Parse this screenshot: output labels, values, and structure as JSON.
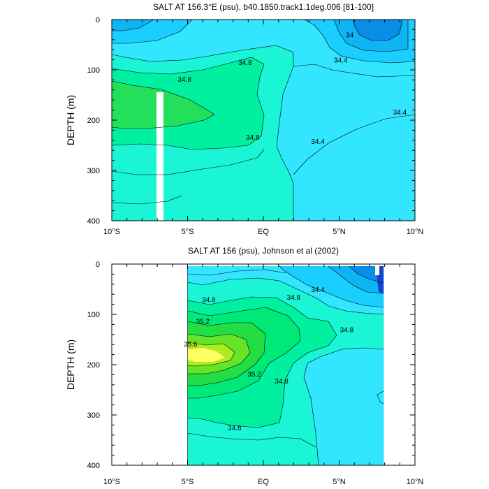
{
  "chart_data": [
    {
      "type": "contour",
      "title": "SALT AT 156.3°E (psu), b40.1850.track1.1deg.006 [81-100]",
      "xlabel": "",
      "ylabel": "DEPTH (m)",
      "xlim": [
        -10,
        10
      ],
      "ylim": [
        0,
        400
      ],
      "y_inverted": true,
      "x_ticks": [
        -10,
        -5,
        0,
        5,
        10
      ],
      "x_tick_labels": [
        "10°S",
        "5°S",
        "EQ",
        "5°N",
        "10°N"
      ],
      "y_ticks": [
        0,
        100,
        200,
        300,
        400
      ],
      "y_tick_labels": [
        "0",
        "100",
        "200",
        "300",
        "400"
      ],
      "contour_labels": [
        {
          "text": "34",
          "lat": 5.7,
          "depth": 30
        },
        {
          "text": "34.4",
          "lat": 5.1,
          "depth": 80
        },
        {
          "text": "34.8",
          "lat": -5.2,
          "depth": 118
        },
        {
          "text": "34.8",
          "lat": -1.2,
          "depth": 85
        },
        {
          "text": "34.8",
          "lat": -0.7,
          "depth": 233
        },
        {
          "text": "34.4",
          "lat": 3.6,
          "depth": 242
        },
        {
          "text": "34.4",
          "lat": 9.0,
          "depth": 183
        }
      ],
      "missing_column": {
        "lat_range": [
          -6.8,
          -6.3
        ],
        "depth_range": [
          145,
          400
        ]
      }
    },
    {
      "type": "contour",
      "title": "SALT AT 156 (psu), Johnson et al (2002)",
      "xlabel": "",
      "ylabel": "DEPTH (m)",
      "xlim": [
        -10,
        10
      ],
      "ylim": [
        0,
        400
      ],
      "y_inverted": true,
      "data_lat_range": [
        -5,
        8
      ],
      "x_ticks": [
        -10,
        -5,
        0,
        5,
        10
      ],
      "x_tick_labels": [
        "10°S",
        "5°S",
        "EQ",
        "5°N",
        "10°N"
      ],
      "y_ticks": [
        0,
        100,
        200,
        300,
        400
      ],
      "y_tick_labels": [
        "0",
        "100",
        "200",
        "300",
        "400"
      ],
      "contour_labels": [
        {
          "text": "34.4",
          "lat": 3.6,
          "depth": 50
        },
        {
          "text": "34.8",
          "lat": -3.6,
          "depth": 70
        },
        {
          "text": "34.8",
          "lat": 2.0,
          "depth": 65
        },
        {
          "text": "35.2",
          "lat": -4.0,
          "depth": 113
        },
        {
          "text": "34.8",
          "lat": 5.5,
          "depth": 130
        },
        {
          "text": "35.6",
          "lat": -4.8,
          "depth": 158
        },
        {
          "text": "35.2",
          "lat": -0.6,
          "depth": 218
        },
        {
          "text": "34.8",
          "lat": 1.2,
          "depth": 232
        },
        {
          "text": "34.8",
          "lat": -1.9,
          "depth": 325
        }
      ]
    }
  ]
}
